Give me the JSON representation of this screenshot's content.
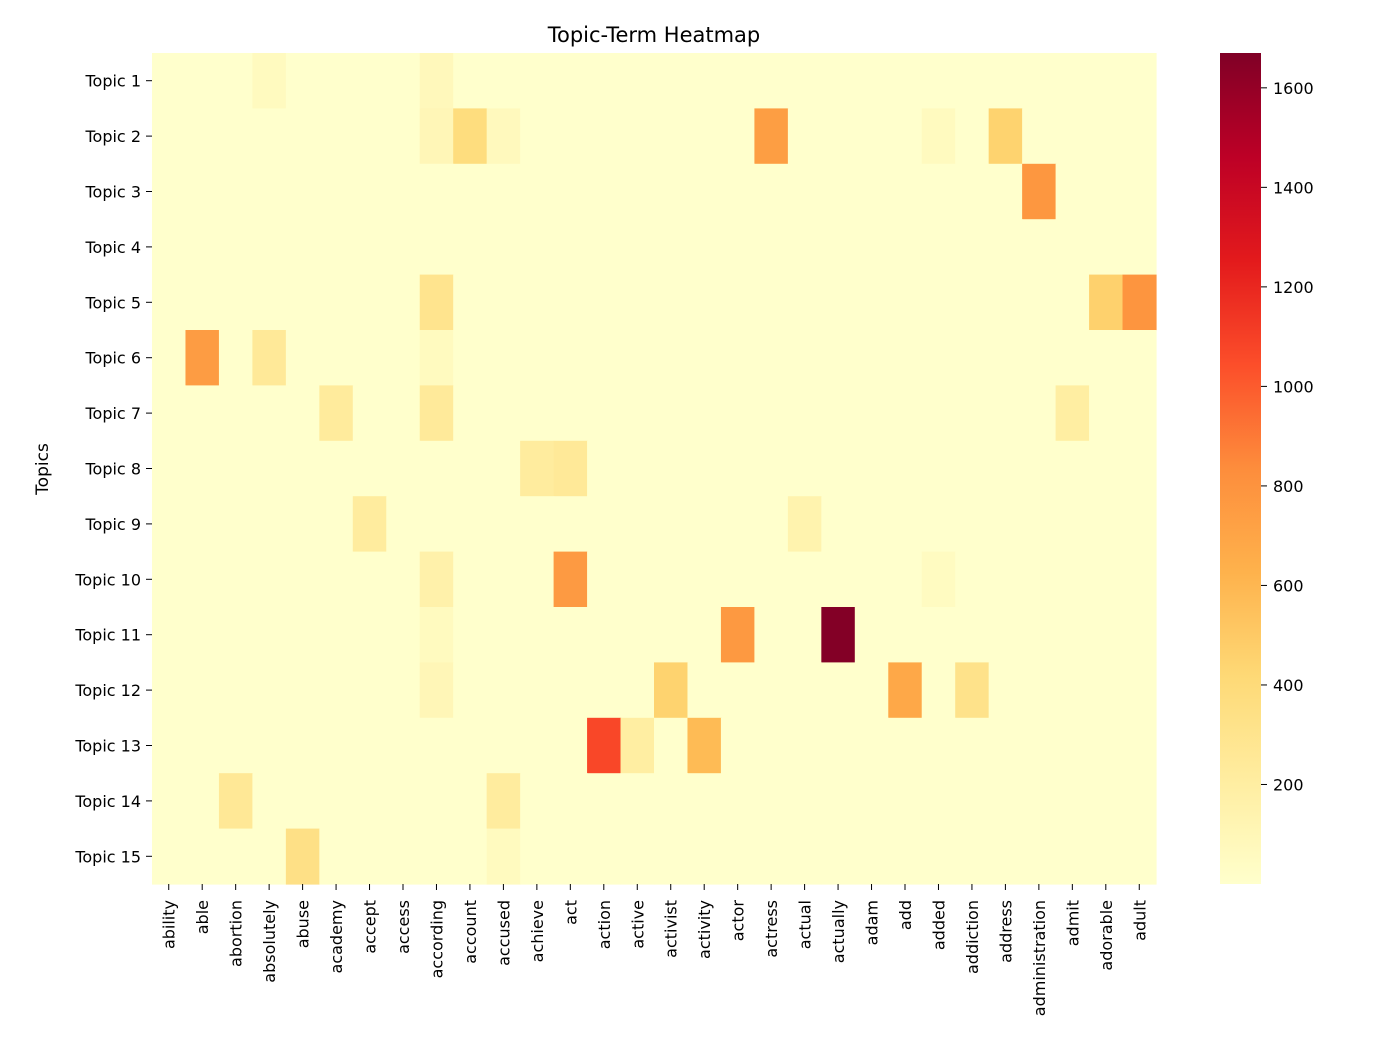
{
  "chart_data": {
    "type": "heatmap",
    "title": "Topic-Term Heatmap",
    "ylabel": "Topics",
    "xlabel": "",
    "colormap": "YlOrRd",
    "colorbar": {
      "min": 0,
      "max": 1670,
      "ticks": [
        200,
        400,
        600,
        800,
        1000,
        1200,
        1400,
        1600
      ]
    },
    "rows": [
      "Topic 1",
      "Topic 2",
      "Topic 3",
      "Topic 4",
      "Topic 5",
      "Topic 6",
      "Topic 7",
      "Topic 8",
      "Topic 9",
      "Topic 10",
      "Topic 11",
      "Topic 12",
      "Topic 13",
      "Topic 14",
      "Topic 15"
    ],
    "columns": [
      "ability",
      "able",
      "abortion",
      "absolutely",
      "abuse",
      "academy",
      "accept",
      "access",
      "according",
      "account",
      "accused",
      "achieve",
      "act",
      "action",
      "active",
      "activist",
      "activity",
      "actor",
      "actress",
      "actual",
      "actually",
      "adam",
      "add",
      "added",
      "addiction",
      "address",
      "administration",
      "admit",
      "adorable",
      "adult"
    ],
    "values": [
      [
        0,
        0,
        0,
        60,
        0,
        0,
        0,
        0,
        80,
        0,
        0,
        0,
        0,
        0,
        0,
        0,
        0,
        0,
        0,
        0,
        0,
        0,
        0,
        0,
        0,
        0,
        0,
        0,
        0,
        0
      ],
      [
        0,
        0,
        0,
        0,
        0,
        0,
        0,
        0,
        100,
        380,
        70,
        0,
        0,
        0,
        0,
        0,
        0,
        0,
        740,
        0,
        0,
        0,
        0,
        60,
        0,
        450,
        0,
        0,
        0,
        0
      ],
      [
        0,
        0,
        0,
        0,
        0,
        0,
        0,
        0,
        0,
        0,
        0,
        0,
        0,
        0,
        0,
        0,
        0,
        0,
        0,
        0,
        0,
        0,
        0,
        0,
        0,
        0,
        780,
        0,
        0,
        0
      ],
      [
        0,
        0,
        0,
        0,
        0,
        0,
        0,
        0,
        0,
        0,
        0,
        0,
        0,
        0,
        0,
        0,
        0,
        0,
        0,
        0,
        0,
        0,
        0,
        0,
        0,
        0,
        0,
        0,
        0,
        0
      ],
      [
        0,
        0,
        0,
        0,
        0,
        0,
        0,
        0,
        300,
        0,
        0,
        0,
        0,
        0,
        0,
        0,
        0,
        0,
        0,
        0,
        0,
        0,
        0,
        0,
        0,
        0,
        0,
        0,
        460,
        790
      ],
      [
        0,
        750,
        0,
        250,
        0,
        0,
        0,
        0,
        60,
        0,
        0,
        0,
        0,
        0,
        0,
        0,
        0,
        0,
        0,
        0,
        0,
        0,
        0,
        0,
        0,
        0,
        0,
        0,
        0,
        0
      ],
      [
        0,
        0,
        0,
        0,
        0,
        230,
        0,
        0,
        240,
        0,
        0,
        0,
        0,
        0,
        0,
        0,
        0,
        0,
        0,
        0,
        0,
        0,
        0,
        0,
        0,
        0,
        0,
        200,
        0,
        0
      ],
      [
        0,
        0,
        0,
        0,
        0,
        0,
        0,
        0,
        0,
        0,
        0,
        220,
        250,
        0,
        0,
        0,
        0,
        0,
        0,
        0,
        0,
        0,
        0,
        0,
        0,
        0,
        0,
        0,
        0,
        0
      ],
      [
        0,
        0,
        0,
        0,
        0,
        0,
        220,
        0,
        0,
        0,
        0,
        0,
        0,
        0,
        0,
        0,
        0,
        0,
        0,
        140,
        0,
        0,
        0,
        0,
        0,
        0,
        0,
        0,
        0,
        0
      ],
      [
        0,
        0,
        0,
        0,
        0,
        0,
        0,
        0,
        160,
        0,
        0,
        0,
        760,
        0,
        0,
        0,
        0,
        0,
        0,
        0,
        0,
        0,
        0,
        50,
        0,
        0,
        0,
        0,
        0,
        0
      ],
      [
        0,
        0,
        0,
        0,
        0,
        0,
        0,
        0,
        60,
        0,
        0,
        0,
        0,
        0,
        0,
        0,
        0,
        770,
        0,
        0,
        1660,
        0,
        0,
        0,
        0,
        0,
        0,
        0,
        0,
        0
      ],
      [
        0,
        0,
        0,
        0,
        0,
        0,
        0,
        0,
        100,
        0,
        0,
        0,
        0,
        0,
        0,
        450,
        0,
        0,
        0,
        0,
        0,
        0,
        680,
        0,
        320,
        0,
        0,
        0,
        0,
        0
      ],
      [
        0,
        0,
        0,
        0,
        0,
        0,
        0,
        0,
        0,
        0,
        0,
        0,
        0,
        1070,
        200,
        0,
        580,
        0,
        0,
        0,
        0,
        0,
        0,
        0,
        0,
        0,
        0,
        0,
        0,
        0
      ],
      [
        0,
        0,
        260,
        0,
        0,
        0,
        0,
        0,
        0,
        0,
        220,
        0,
        0,
        0,
        0,
        0,
        0,
        0,
        0,
        0,
        0,
        0,
        0,
        0,
        0,
        0,
        0,
        0,
        0,
        0
      ],
      [
        0,
        0,
        0,
        0,
        340,
        0,
        0,
        0,
        0,
        0,
        60,
        0,
        0,
        0,
        0,
        0,
        0,
        0,
        0,
        0,
        0,
        0,
        0,
        0,
        0,
        0,
        0,
        0,
        0,
        0
      ]
    ],
    "grid": false,
    "legend": "colorbar-right"
  }
}
